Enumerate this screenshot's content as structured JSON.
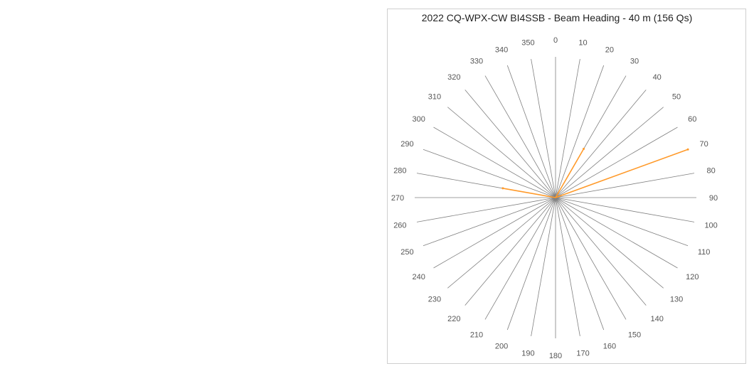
{
  "chart_data": {
    "type": "radar",
    "title": "2022 CQ-WPX-CW BI4SSB - Beam Heading - 40 m (156 Qs)",
    "angle_labels": [
      "0",
      "10",
      "20",
      "30",
      "40",
      "50",
      "60",
      "70",
      "80",
      "90",
      "100",
      "110",
      "120",
      "130",
      "140",
      "150",
      "160",
      "170",
      "180",
      "190",
      "200",
      "210",
      "220",
      "230",
      "240",
      "250",
      "260",
      "270",
      "280",
      "290",
      "300",
      "310",
      "320",
      "330",
      "340",
      "350"
    ],
    "series": [
      {
        "values": [
          0,
          0,
          0,
          40,
          0,
          0,
          0,
          100,
          0,
          0,
          0,
          0,
          0,
          0,
          0,
          0,
          0,
          0,
          0,
          0,
          0,
          0,
          0,
          0,
          0,
          0,
          0,
          0,
          38,
          0,
          0,
          0,
          0,
          0,
          0,
          0
        ],
        "fill": "#ff7f80",
        "stroke": "#ff9a2a"
      }
    ],
    "r_max": 100,
    "grid": "spokes"
  }
}
